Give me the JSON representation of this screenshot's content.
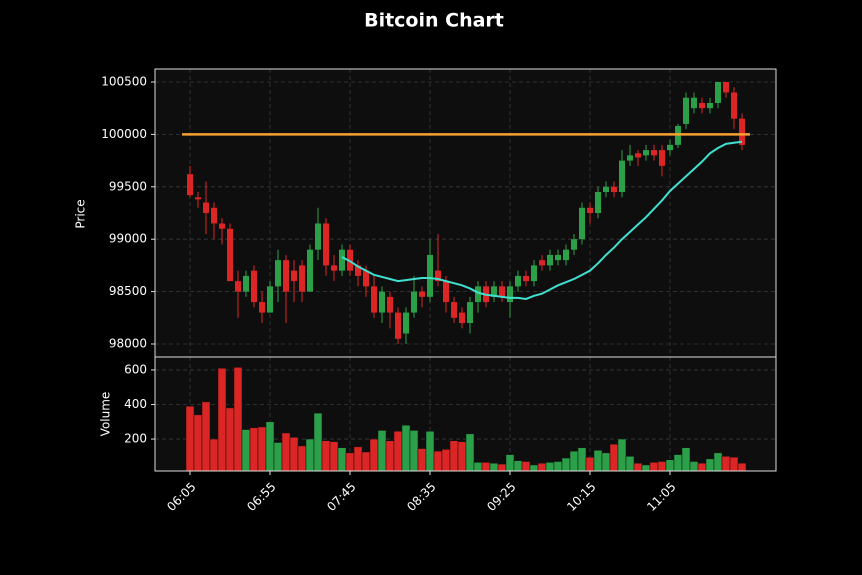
{
  "chart_data": {
    "type": "candlestick",
    "title": "Bitcoin Chart",
    "ylabel": "Price",
    "volume_ylabel": "Volume",
    "categories": [
      "06:05",
      null,
      null,
      null,
      null,
      null,
      null,
      null,
      null,
      null,
      "06:55",
      null,
      null,
      null,
      null,
      null,
      null,
      null,
      null,
      null,
      "07:45",
      null,
      null,
      null,
      null,
      null,
      null,
      null,
      null,
      null,
      "08:35",
      null,
      null,
      null,
      null,
      null,
      null,
      null,
      null,
      null,
      "09:25",
      null,
      null,
      null,
      null,
      null,
      null,
      null,
      null,
      null,
      "10:15",
      null,
      null,
      null,
      null,
      null,
      null,
      null,
      null,
      null,
      "11:05",
      null,
      null,
      null,
      null,
      null,
      null,
      null,
      null,
      null
    ],
    "open": [
      99620,
      99400,
      99350,
      99300,
      99150,
      99100,
      98600,
      98500,
      98700,
      98400,
      98300,
      98550,
      98800,
      98700,
      98750,
      98500,
      98900,
      99150,
      98750,
      98700,
      98900,
      98750,
      98700,
      98550,
      98300,
      98450,
      98300,
      98100,
      98300,
      98500,
      98450,
      98700,
      98600,
      98400,
      98300,
      98200,
      98400,
      98550,
      98450,
      98550,
      98400,
      98550,
      98650,
      98600,
      98800,
      98750,
      98800,
      98800,
      98900,
      99000,
      99300,
      99250,
      99450,
      99500,
      99450,
      99750,
      99820,
      99800,
      99850,
      99850,
      99850,
      99900,
      100100,
      100250,
      100300,
      100250,
      100300,
      100500,
      100400,
      100150
    ],
    "high": [
      99700,
      99450,
      99550,
      99350,
      99200,
      99150,
      98700,
      98700,
      98750,
      98500,
      98600,
      98900,
      98850,
      98800,
      98800,
      98950,
      99300,
      99200,
      98850,
      98950,
      98950,
      98800,
      98750,
      98650,
      98550,
      98500,
      98350,
      98350,
      98650,
      98550,
      99000,
      99050,
      98650,
      98450,
      98350,
      98450,
      98600,
      98600,
      98600,
      98600,
      98600,
      98700,
      98700,
      98800,
      98850,
      98900,
      98900,
      98950,
      99050,
      99350,
      99350,
      99500,
      99550,
      99550,
      99850,
      99900,
      99850,
      99900,
      99900,
      99900,
      99950,
      100100,
      100400,
      100400,
      100350,
      100350,
      100500,
      100500,
      100450,
      100200
    ],
    "low": [
      99400,
      99300,
      99050,
      99000,
      98950,
      98600,
      98250,
      98450,
      98350,
      98200,
      98300,
      98400,
      98200,
      98400,
      98400,
      98500,
      98800,
      98650,
      98600,
      98650,
      98650,
      98550,
      98450,
      98250,
      98200,
      98150,
      98000,
      98000,
      98250,
      98350,
      98400,
      98550,
      98300,
      98200,
      98150,
      98100,
      98300,
      98350,
      98400,
      98400,
      98250,
      98500,
      98550,
      98550,
      98700,
      98700,
      98750,
      98750,
      98850,
      98950,
      99150,
      99200,
      99400,
      99400,
      99400,
      99700,
      99700,
      99750,
      99750,
      99600,
      99800,
      99870,
      100050,
      100200,
      100200,
      100200,
      100250,
      100350,
      100050,
      99850
    ],
    "close": [
      99420,
      99380,
      99250,
      99150,
      99100,
      98600,
      98500,
      98650,
      98400,
      98300,
      98550,
      98800,
      98500,
      98600,
      98500,
      98900,
      99150,
      98750,
      98700,
      98900,
      98700,
      98650,
      98550,
      98300,
      98500,
      98300,
      98050,
      98300,
      98500,
      98450,
      98850,
      98600,
      98400,
      98250,
      98200,
      98400,
      98550,
      98400,
      98550,
      98450,
      98550,
      98650,
      98600,
      98750,
      98750,
      98850,
      98850,
      98900,
      99000,
      99300,
      99250,
      99450,
      99500,
      99450,
      99750,
      99800,
      99780,
      99850,
      99800,
      99700,
      99900,
      100080,
      100350,
      100350,
      100250,
      100300,
      100500,
      100400,
      100150,
      99900
    ],
    "volume": [
      390,
      340,
      415,
      200,
      610,
      380,
      615,
      255,
      265,
      270,
      300,
      180,
      235,
      210,
      160,
      200,
      350,
      190,
      185,
      150,
      120,
      155,
      125,
      200,
      250,
      190,
      245,
      280,
      250,
      145,
      245,
      130,
      140,
      190,
      185,
      230,
      65,
      65,
      60,
      55,
      110,
      75,
      70,
      50,
      60,
      65,
      70,
      90,
      130,
      150,
      95,
      135,
      120,
      170,
      200,
      100,
      60,
      50,
      65,
      70,
      80,
      110,
      150,
      70,
      60,
      85,
      120,
      100,
      95,
      60
    ],
    "up_color": "#2ca048",
    "down_color": "#dc2626",
    "ma": {
      "color": "#40e0d0",
      "values": [
        null,
        null,
        null,
        null,
        null,
        null,
        null,
        null,
        null,
        null,
        null,
        null,
        null,
        null,
        null,
        null,
        null,
        null,
        null,
        98830,
        98790,
        98740,
        98700,
        98660,
        98640,
        98620,
        98600,
        98610,
        98620,
        98630,
        98630,
        98620,
        98600,
        98580,
        98560,
        98530,
        98490,
        98470,
        98460,
        98450,
        98440,
        98440,
        98430,
        98460,
        98480,
        98520,
        98560,
        98590,
        98620,
        98660,
        98700,
        98770,
        98850,
        98920,
        99000,
        99070,
        99140,
        99210,
        99290,
        99370,
        99460,
        99530,
        99600,
        99670,
        99740,
        99820,
        99870,
        99910,
        99920,
        99930
      ]
    },
    "hline": {
      "value": 100000,
      "color": "#f5a030"
    },
    "ylim": [
      97876,
      100624
    ],
    "yticks": [
      98000,
      98500,
      99000,
      99500,
      100000,
      100500
    ],
    "volume_ylim": [
      15,
      675
    ],
    "volume_yticks": [
      200,
      400,
      600
    ],
    "grid": true
  }
}
